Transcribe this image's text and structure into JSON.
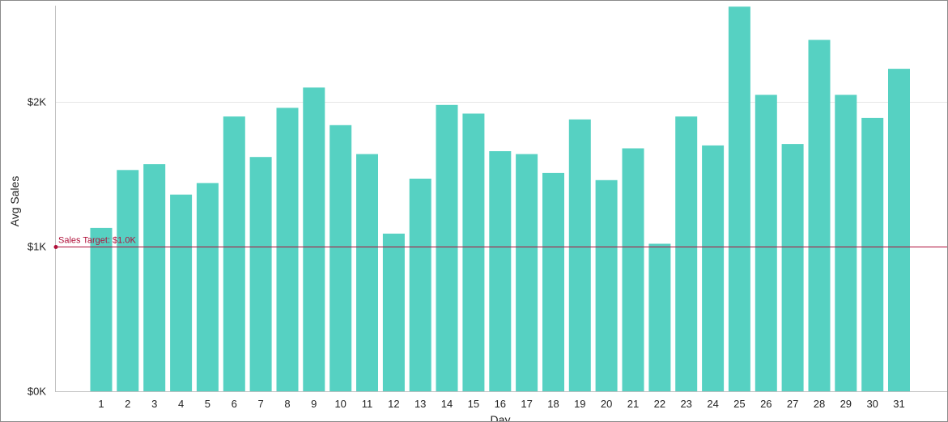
{
  "chart_data": {
    "type": "bar",
    "xlabel": "Day",
    "ylabel": "Avg Sales",
    "categories": [
      "1",
      "2",
      "3",
      "4",
      "5",
      "6",
      "7",
      "8",
      "9",
      "10",
      "11",
      "12",
      "13",
      "14",
      "15",
      "16",
      "17",
      "18",
      "19",
      "20",
      "21",
      "22",
      "23",
      "24",
      "25",
      "26",
      "27",
      "28",
      "29",
      "30",
      "31"
    ],
    "values": [
      1130,
      1530,
      1570,
      1360,
      1440,
      1900,
      1620,
      1960,
      2100,
      1840,
      1640,
      1090,
      1470,
      1980,
      1920,
      1660,
      1640,
      1510,
      1880,
      1460,
      1680,
      1020,
      1900,
      1700,
      2660,
      2050,
      1710,
      2430,
      2050,
      1890,
      2230
    ],
    "ylim": [
      0,
      2700
    ],
    "yticks": [
      0,
      1000,
      2000
    ],
    "ytick_labels": [
      "$0K",
      "$1K",
      "$2K"
    ],
    "grid": true,
    "bar_color": "#56d1c2",
    "reference_line": {
      "label": "Sales Target: $1.0K",
      "value": 1000,
      "color": "#b0103a"
    }
  }
}
